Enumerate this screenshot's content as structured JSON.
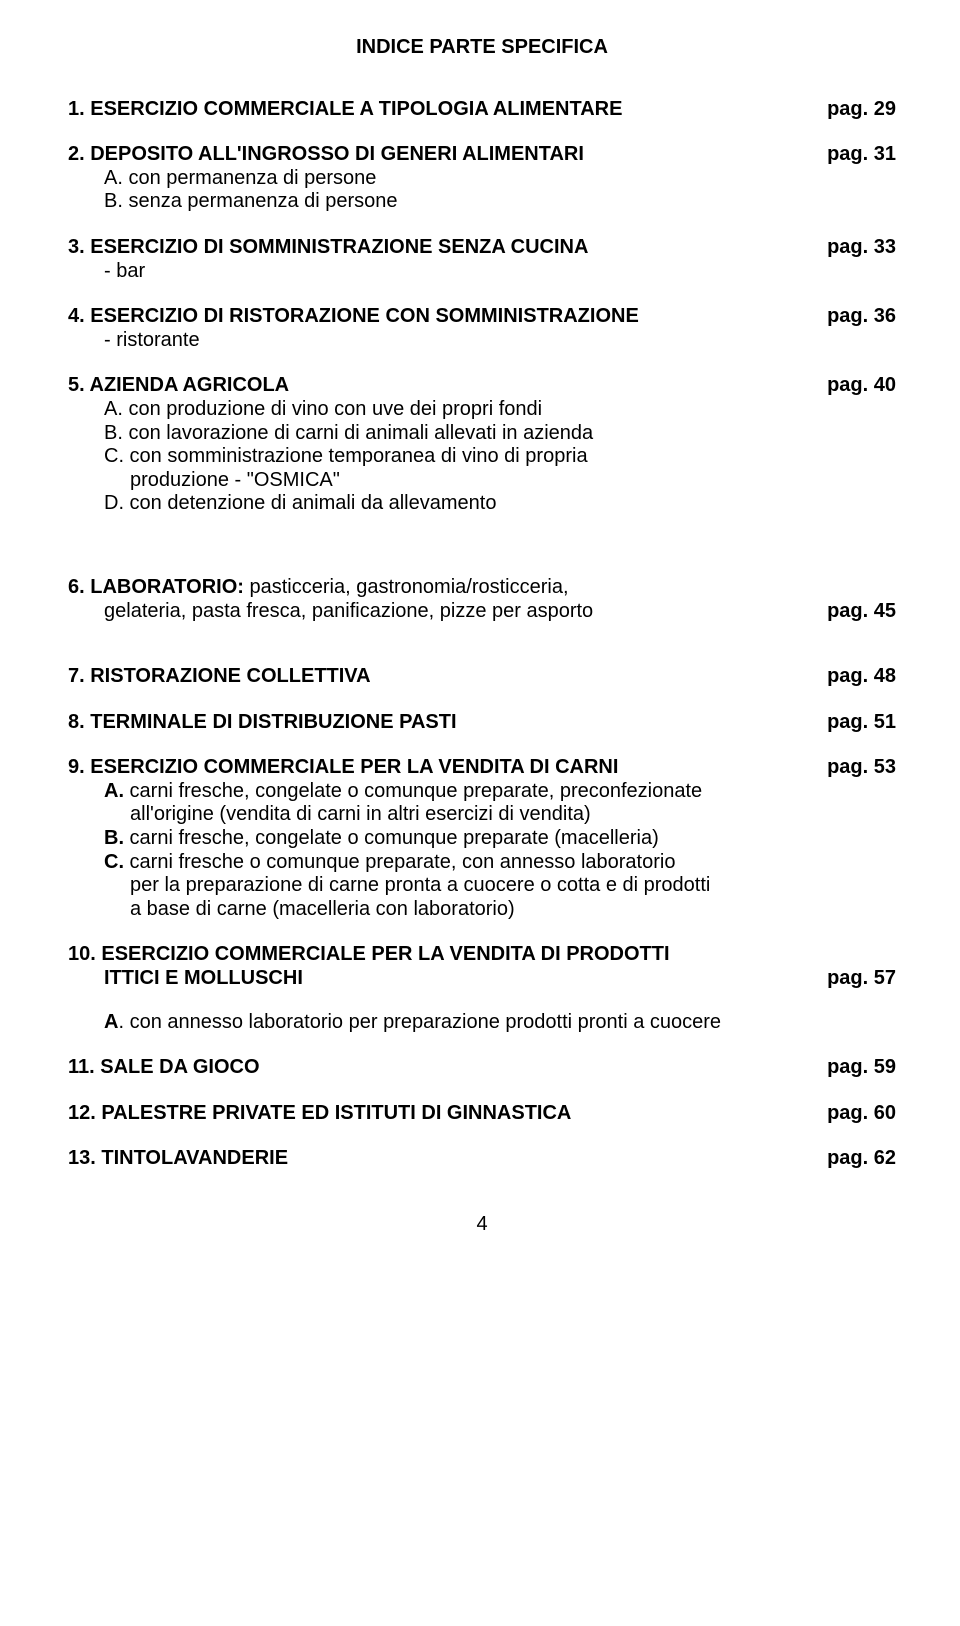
{
  "title": "INDICE PARTE SPECIFICA",
  "pag_label": "pag.",
  "page_number": "4",
  "e1": {
    "text": "1.   ESERCIZIO COMMERCIALE  A TIPOLOGIA ALIMENTARE",
    "page": "29"
  },
  "e2": {
    "text": "2.   DEPOSITO ALL'INGROSSO DI GENERI ALIMENTARI",
    "page": "31",
    "a": "A.   con permanenza di persone",
    "b": "B.   senza permanenza di persone"
  },
  "e3": {
    "text": "3.   ESERCIZIO DI SOMMINISTRAZIONE SENZA CUCINA",
    "page": "33",
    "a": "-    bar"
  },
  "e4": {
    "text": "4.   ESERCIZIO DI RISTORAZIONE CON SOMMINISTRAZIONE",
    "page": "36",
    "a": "-    ristorante"
  },
  "e5": {
    "text": "5.   AZIENDA AGRICOLA",
    "page": "40",
    "a": "A.   con produzione di vino con uve dei propri fondi",
    "b": "B.   con lavorazione di carni di animali allevati in azienda",
    "c": "C.  con somministrazione temporanea di vino di propria",
    "c2": "produzione  - \"OSMICA\"",
    "d": "D.  con detenzione di animali da allevamento"
  },
  "e6": {
    "text_a": "6.   LABORATORIO:",
    "text_b": "  pasticceria, gastronomia/rosticceria,",
    "line2": "gelateria,  pasta fresca, panificazione, pizze per asporto",
    "page": "45"
  },
  "e7": {
    "text": "7.   RISTORAZIONE COLLETTIVA",
    "page": "48"
  },
  "e8": {
    "text": "8.  TERMINALE DI DISTRIBUZIONE PASTI",
    "page": "51"
  },
  "e9": {
    "text": "9.   ESERCIZIO COMMERCIALE PER LA VENDITA DI CARNI",
    "page": "53",
    "a1_bold": "A.",
    "a1": "  carni fresche, congelate o comunque preparate, preconfezionate",
    "a2": "all'origine  (vendita di carni in altri esercizi di vendita)",
    "b_bold": "B.",
    "b": "  carni fresche, congelate o comunque preparate (macelleria)",
    "c_bold": "C.",
    "c1": "  carni fresche o comunque preparate, con annesso laboratorio",
    "c2": "per la preparazione di carne pronta a cuocere o cotta e di prodotti",
    "c3": "a base di carne (macelleria con laboratorio)"
  },
  "e10": {
    "line1": "10. ESERCIZIO COMMERCIALE PER LA VENDITA DI PRODOTTI",
    "line2": "ITTICI   E   MOLLUSCHI",
    "page": "57",
    "a_bold": "A",
    "a": ". con annesso laboratorio per preparazione prodotti pronti a cuocere"
  },
  "e11": {
    "text": "11.  SALE DA GIOCO",
    "page": "59"
  },
  "e12": {
    "text": "12.  PALESTRE PRIVATE ED ISTITUTI DI GINNASTICA",
    "page": "60"
  },
  "e13": {
    "text": "13.  TINTOLAVANDERIE",
    "page": "62"
  }
}
